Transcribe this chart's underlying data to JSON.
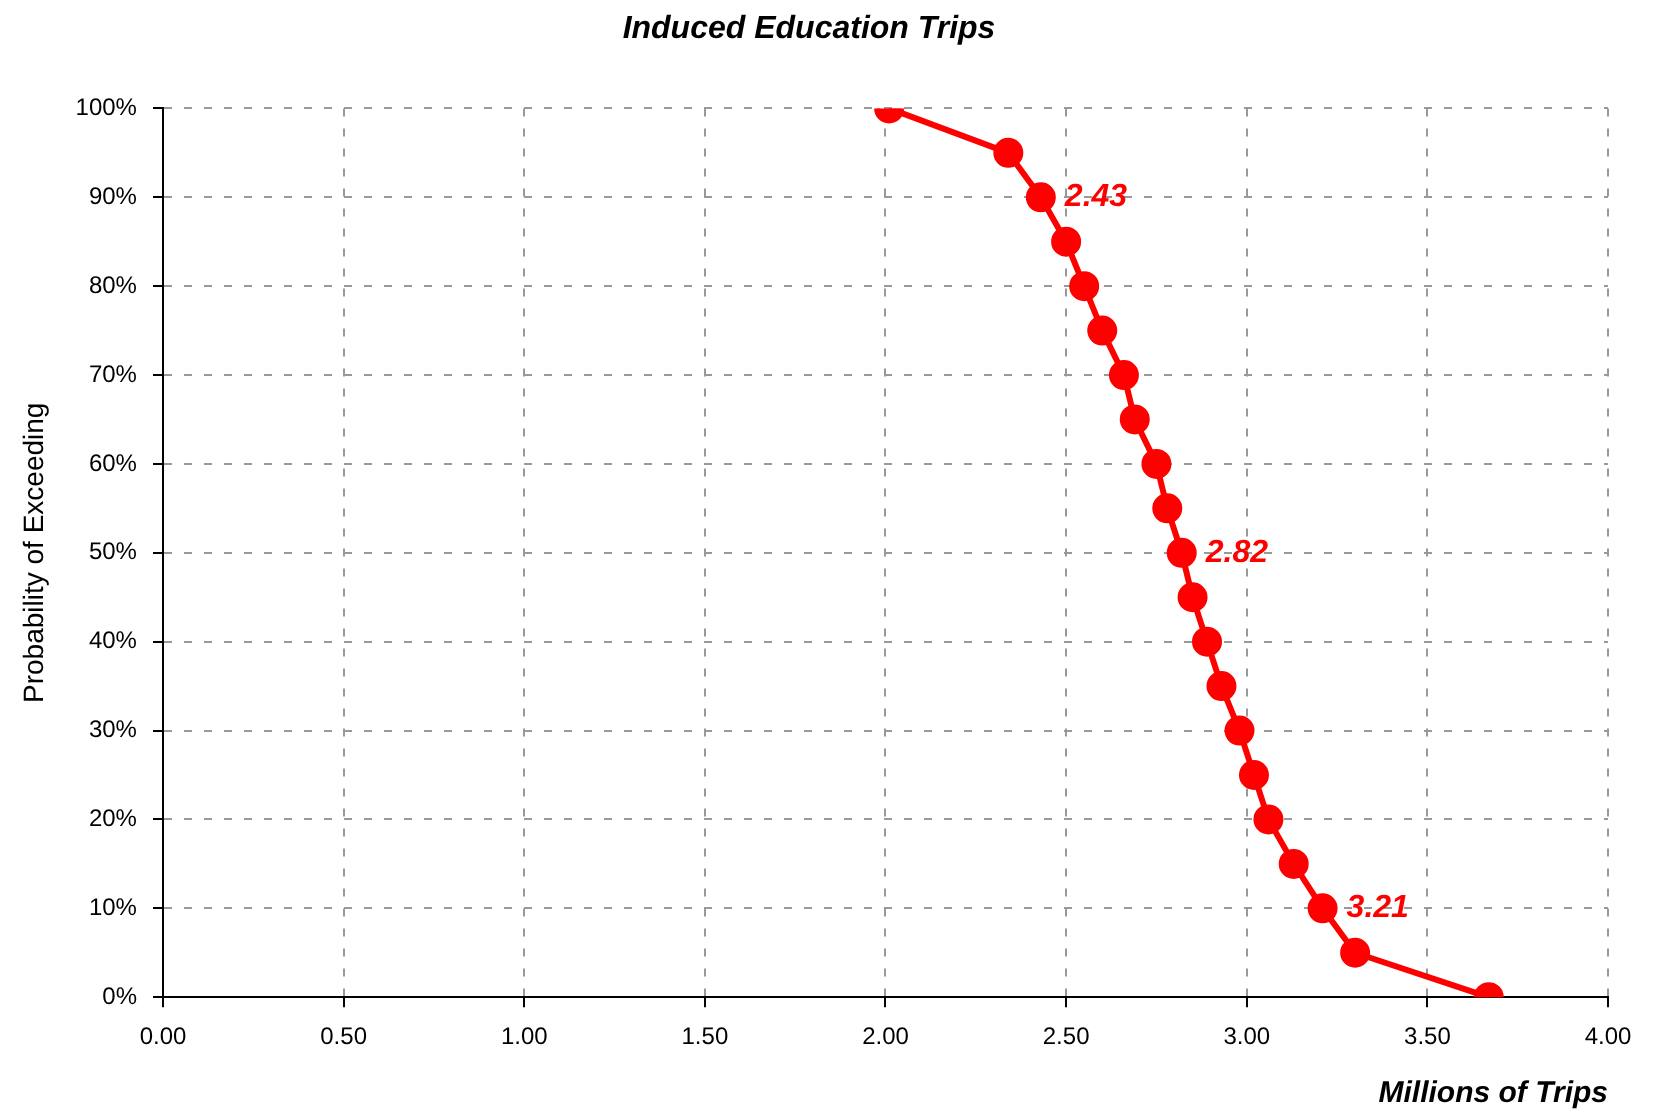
{
  "chart_data": {
    "type": "line",
    "title": "Induced Education Trips",
    "xlabel": "Millions of Trips",
    "ylabel": "Probability of Exceeding",
    "x": [
      2.01,
      2.34,
      2.43,
      2.5,
      2.55,
      2.6,
      2.66,
      2.69,
      2.75,
      2.78,
      2.82,
      2.85,
      2.89,
      2.93,
      2.98,
      3.02,
      3.06,
      3.13,
      3.21,
      3.3,
      3.67
    ],
    "series": [
      {
        "color": "#ff0000",
        "values": [
          100,
          95,
          90,
          85,
          80,
          75,
          70,
          65,
          60,
          55,
          50,
          45,
          40,
          35,
          30,
          25,
          20,
          15,
          10,
          5,
          0
        ]
      }
    ],
    "xlim": [
      0,
      4
    ],
    "xticks": [
      {
        "value": 0,
        "label": "0.00"
      },
      {
        "value": 0.5,
        "label": "0.50"
      },
      {
        "value": 1,
        "label": "1.00"
      },
      {
        "value": 1.5,
        "label": "1.50"
      },
      {
        "value": 2,
        "label": "2.00"
      },
      {
        "value": 2.5,
        "label": "2.50"
      },
      {
        "value": 3,
        "label": "3.00"
      },
      {
        "value": 3.5,
        "label": "3.50"
      },
      {
        "value": 4,
        "label": "4.00"
      }
    ],
    "ylim": [
      0,
      100
    ],
    "yticks": [
      {
        "value": 0,
        "label": "0%"
      },
      {
        "value": 10,
        "label": "10%"
      },
      {
        "value": 20,
        "label": "20%"
      },
      {
        "value": 30,
        "label": "30%"
      },
      {
        "value": 40,
        "label": "40%"
      },
      {
        "value": 50,
        "label": "50%"
      },
      {
        "value": 60,
        "label": "60%"
      },
      {
        "value": 70,
        "label": "70%"
      },
      {
        "value": 80,
        "label": "80%"
      },
      {
        "value": 90,
        "label": "90%"
      },
      {
        "value": 100,
        "label": "100%"
      }
    ],
    "annotations": [
      {
        "text": "2.43",
        "x": 2.43,
        "y": 90
      },
      {
        "text": "2.82",
        "x": 2.82,
        "y": 50
      },
      {
        "text": "3.21",
        "x": 3.21,
        "y": 10
      }
    ],
    "grid": true,
    "legend": false,
    "marker": "circle",
    "line_style": "solid"
  }
}
